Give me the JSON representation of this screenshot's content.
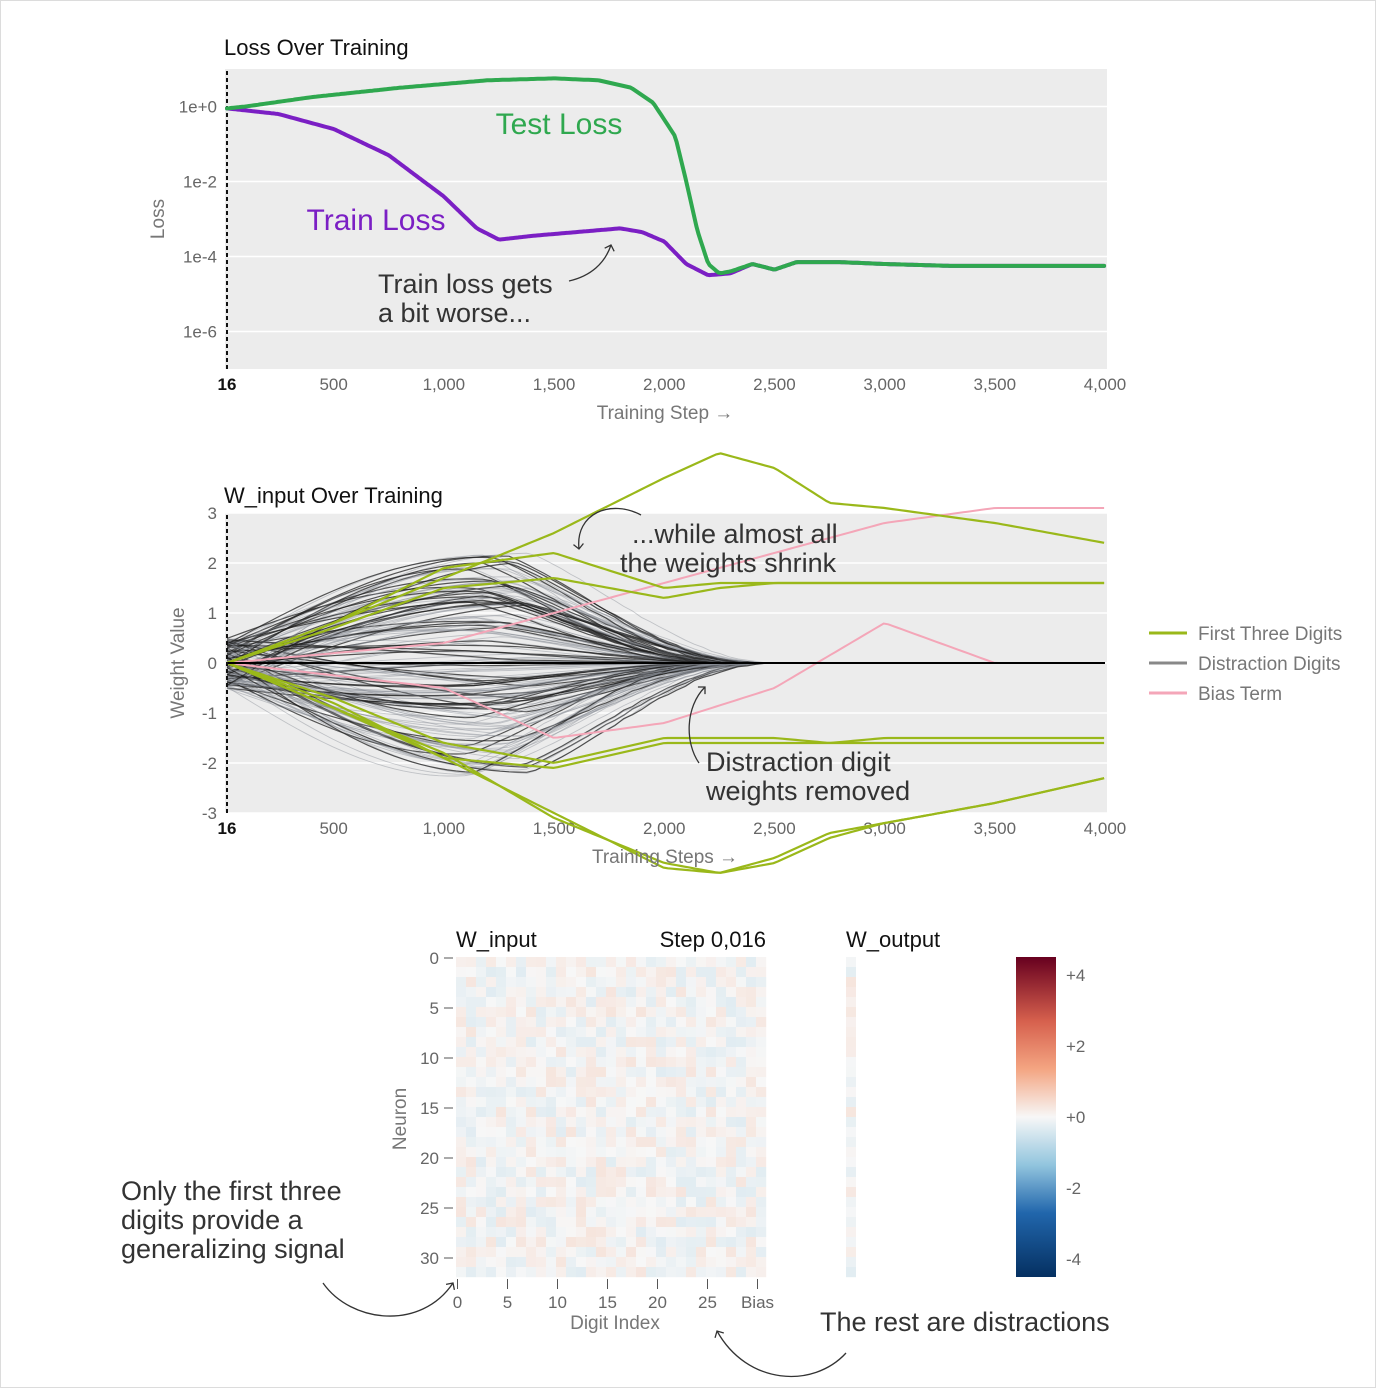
{
  "colors": {
    "train": "#7b1fc4",
    "test": "#2fa84f",
    "first_three": "#9ab81a",
    "distraction": "#666666",
    "bias": "#f4a6b8",
    "plot_bg": "#ececec"
  },
  "loss_chart": {
    "type": "line",
    "title": "Loss Over Training",
    "xlabel": "Training Step →",
    "ylabel": "Loss",
    "yscale": "log",
    "xlim": [
      16,
      4000
    ],
    "ylim_exponent": [
      -7,
      1
    ],
    "x_ticks": [
      "16",
      "500",
      "1,000",
      "1,500",
      "2,000",
      "2,500",
      "3,000",
      "3,500",
      "4,000"
    ],
    "y_ticks": [
      "1e+0",
      "1e-2",
      "1e-4",
      "1e-6"
    ],
    "series": [
      {
        "name": "Train Loss",
        "x": [
          16,
          250,
          500,
          750,
          1000,
          1150,
          1250,
          1400,
          1600,
          1800,
          1900,
          2000,
          2100,
          2200,
          2300,
          2400,
          2500,
          2600,
          2800,
          3000,
          3300,
          3600,
          4000
        ],
        "log10_y": [
          -0.05,
          -0.2,
          -0.6,
          -1.3,
          -2.4,
          -3.25,
          -3.55,
          -3.45,
          -3.35,
          -3.25,
          -3.35,
          -3.6,
          -4.2,
          -4.5,
          -4.45,
          -4.2,
          -4.35,
          -4.15,
          -4.15,
          -4.2,
          -4.25,
          -4.25,
          -4.25
        ]
      },
      {
        "name": "Test Loss",
        "x": [
          16,
          100,
          400,
          800,
          1200,
          1500,
          1700,
          1850,
          1950,
          2050,
          2100,
          2150,
          2200,
          2250,
          2300,
          2400,
          2500,
          2600,
          2800,
          3000,
          3300,
          3600,
          4000
        ],
        "log10_y": [
          -0.05,
          0.0,
          0.25,
          0.5,
          0.7,
          0.75,
          0.7,
          0.5,
          0.1,
          -0.8,
          -2.0,
          -3.3,
          -4.2,
          -4.45,
          -4.4,
          -4.2,
          -4.35,
          -4.15,
          -4.15,
          -4.2,
          -4.25,
          -4.25,
          -4.25
        ]
      }
    ],
    "series_labels": {
      "train": "Train Loss",
      "test": "Test Loss"
    },
    "annotation": [
      "Train loss gets",
      "a bit worse..."
    ]
  },
  "weight_chart": {
    "type": "line",
    "title": "W_input Over Training",
    "xlabel": "Training Steps →",
    "ylabel": "Weight Value",
    "xlim": [
      16,
      4000
    ],
    "ylim": [
      -3,
      3
    ],
    "x_ticks": [
      "16",
      "500",
      "1,000",
      "1,500",
      "2,000",
      "2,500",
      "3,000",
      "3,500",
      "4,000"
    ],
    "y_ticks": [
      "3",
      "2",
      "1",
      "0",
      "-1",
      "-2",
      "-3"
    ],
    "first_three_series_x": [
      16,
      500,
      1000,
      1500,
      2000,
      2250,
      2500,
      2750,
      3000,
      3500,
      4000
    ],
    "first_three_series_y": [
      [
        0,
        0.8,
        1.7,
        2.6,
        3.7,
        4.2,
        3.9,
        3.2,
        3.1,
        2.8,
        2.4
      ],
      [
        0,
        0.8,
        1.9,
        2.2,
        1.5,
        1.6,
        1.6,
        1.6,
        1.6,
        1.6,
        1.6
      ],
      [
        0,
        0.7,
        1.5,
        1.7,
        1.3,
        1.5,
        1.6,
        1.6,
        1.6,
        1.6,
        1.6
      ],
      [
        0,
        -0.8,
        -1.9,
        -2.1,
        -1.6,
        -1.6,
        -1.6,
        -1.6,
        -1.6,
        -1.6,
        -1.6
      ],
      [
        0,
        -0.7,
        -1.6,
        -2.0,
        -1.5,
        -1.5,
        -1.5,
        -1.6,
        -1.5,
        -1.5,
        -1.5
      ],
      [
        0,
        -0.9,
        -1.8,
        -3.1,
        -4.0,
        -4.2,
        -4.0,
        -3.5,
        -3.2,
        -2.8,
        -2.3
      ],
      [
        0,
        -0.9,
        -1.9,
        -3.0,
        -4.1,
        -4.2,
        -3.9,
        -3.4,
        -3.2,
        -2.8,
        -2.3
      ]
    ],
    "bias_series_x": [
      16,
      1000,
      1500,
      2000,
      2500,
      3000,
      3500,
      4000
    ],
    "bias_series_y": [
      [
        0,
        0.4,
        1.0,
        1.6,
        2.2,
        2.8,
        3.1,
        3.1
      ],
      [
        0,
        -0.5,
        -1.5,
        -1.2,
        -0.5,
        0.8,
        0.0,
        0.0
      ]
    ],
    "legend": [
      "First Three Digits",
      "Distraction Digits",
      "Bias Term"
    ],
    "annotation_top": [
      "...while almost all",
      "the weights shrink"
    ],
    "annotation_bottom": [
      "Distraction digit",
      "weights removed"
    ]
  },
  "heatmap": {
    "type": "heatmap",
    "title_left": "W_input",
    "title_step": "Step 0,016",
    "title_output": "W_output",
    "xlabel": "Digit Index",
    "ylabel": "Neuron",
    "x_ticks": [
      "0",
      "5",
      "10",
      "15",
      "20",
      "25",
      "Bias"
    ],
    "y_ticks": [
      "0",
      "5",
      "10",
      "15",
      "20",
      "25",
      "30"
    ],
    "rows": 32,
    "cols": 31,
    "value_range": [
      -0.3,
      0.3
    ],
    "colorbar_ticks": [
      "+4",
      "+2",
      "+0",
      "-2",
      "-4"
    ],
    "colorbar_range": [
      -4.5,
      4.5
    ]
  },
  "notes": {
    "left": [
      "Only the first three",
      "digits provide a",
      "generalizing signal"
    ],
    "right": "The rest are distractions"
  }
}
